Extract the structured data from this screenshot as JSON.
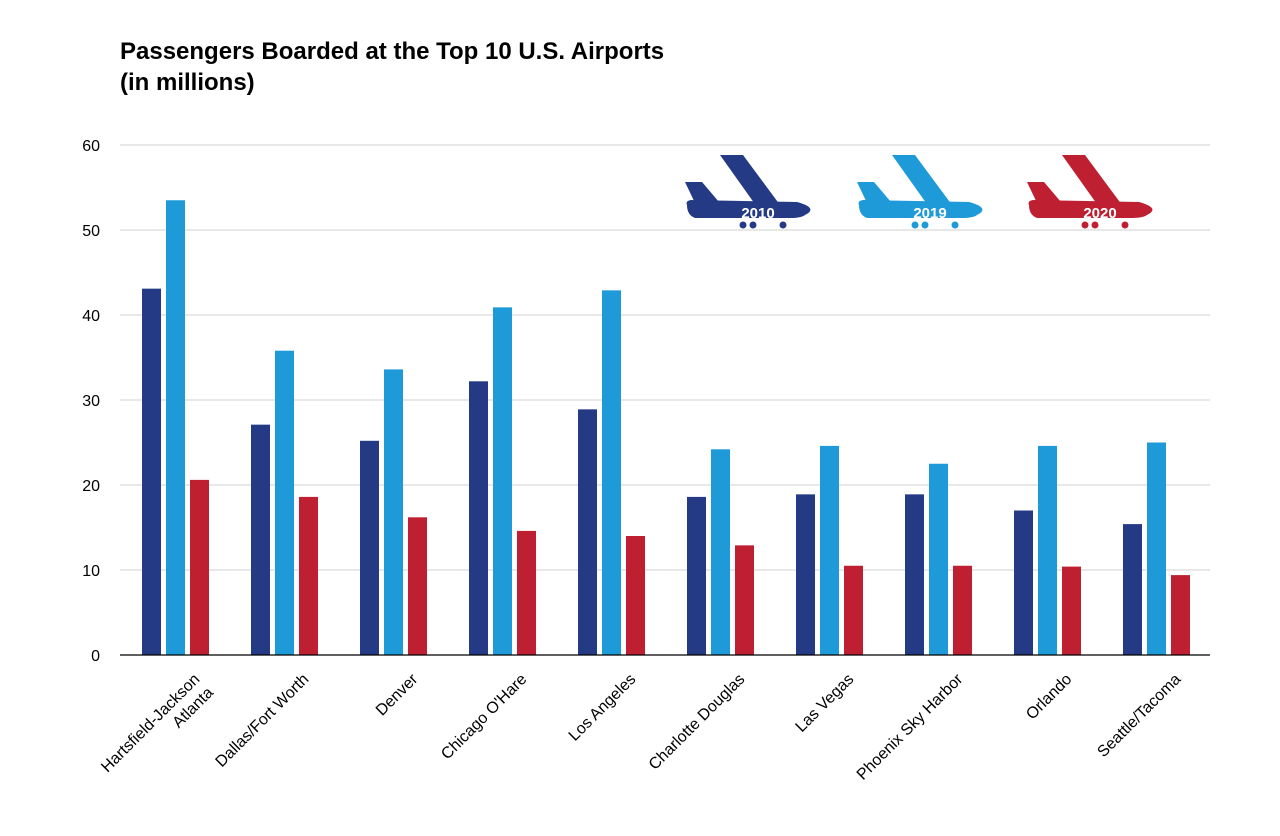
{
  "chart_data": {
    "type": "bar",
    "title_line1": "Passengers Boarded at the Top 10 U.S. Airports",
    "title_line2": "(in millions)",
    "ylim": [
      0,
      60
    ],
    "yticks": [
      0,
      10,
      20,
      30,
      40,
      50,
      60
    ],
    "grid": true,
    "categories": [
      [
        "Hartsfield-Jackson",
        "Atlanta"
      ],
      [
        "Dallas/Fort Worth"
      ],
      [
        "Denver"
      ],
      [
        "Chicago O'Hare"
      ],
      [
        "Los Angeles"
      ],
      [
        "Charlotte Douglas"
      ],
      [
        "Las Vegas"
      ],
      [
        "Phoenix Sky Harbor"
      ],
      [
        "Orlando"
      ],
      [
        "Seattle/Tacoma"
      ]
    ],
    "series": [
      {
        "name": "2010",
        "color": "#253A84",
        "values": [
          43.1,
          27.1,
          25.2,
          32.2,
          28.9,
          18.6,
          18.9,
          18.9,
          17.0,
          15.4
        ]
      },
      {
        "name": "2019",
        "color": "#1E9AD9",
        "values": [
          53.5,
          35.8,
          33.6,
          40.9,
          42.9,
          24.2,
          24.6,
          22.5,
          24.6,
          25.0
        ]
      },
      {
        "name": "2020",
        "color": "#BE2032",
        "values": [
          20.6,
          18.6,
          16.2,
          14.6,
          14.0,
          12.9,
          10.5,
          10.5,
          10.4,
          9.4
        ]
      }
    ],
    "legend": "top-right, airplane icons"
  }
}
